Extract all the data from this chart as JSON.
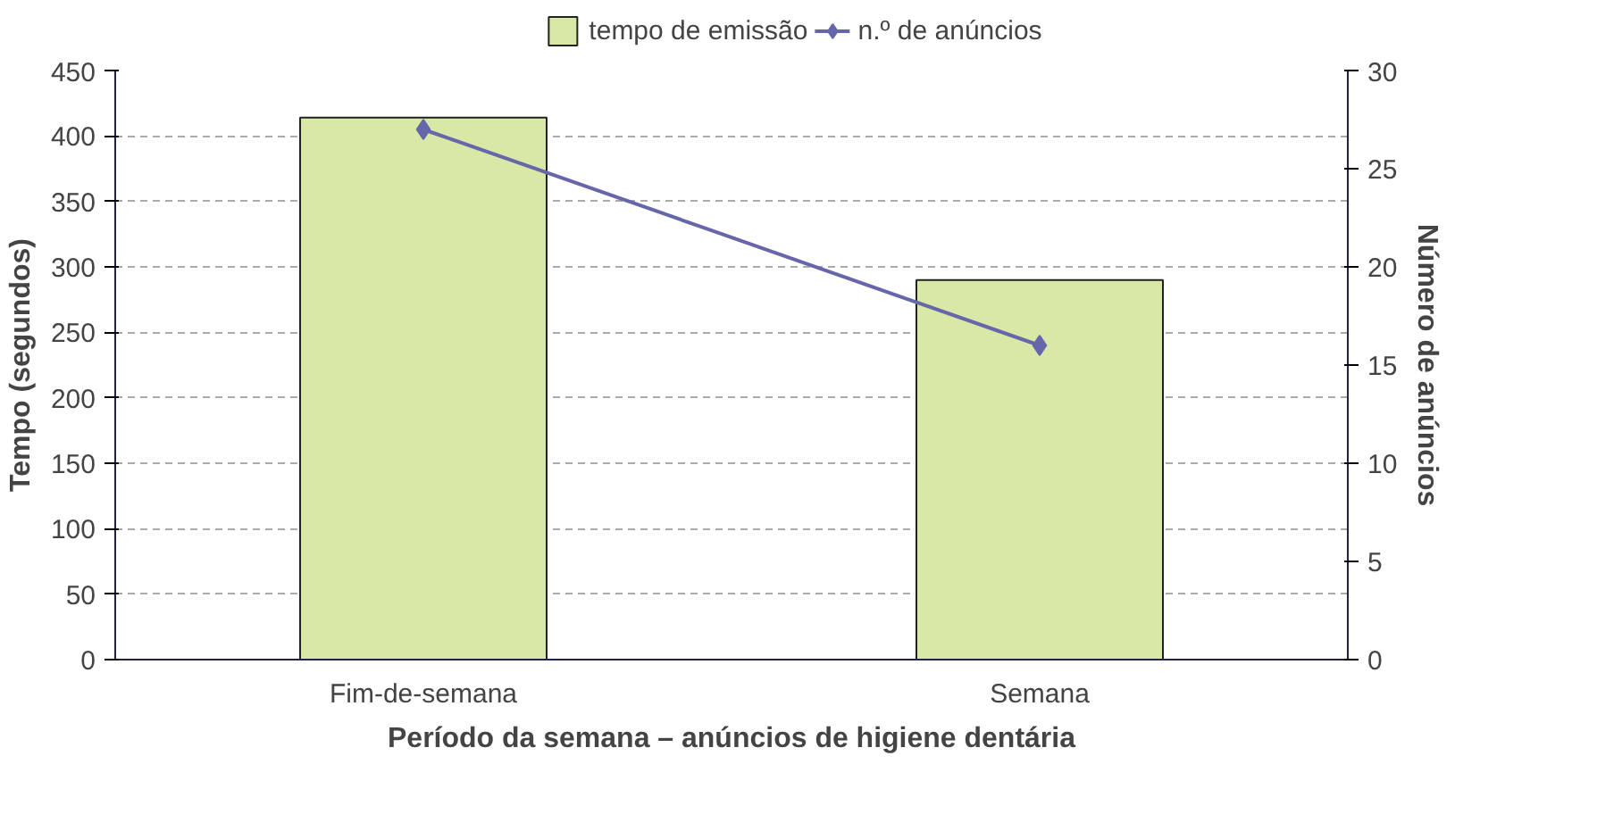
{
  "chart_data": {
    "type": "bar",
    "xlabel": "Período da semana – anúncios de higiene dentária",
    "ylabel": "Tempo (segundos)",
    "y2label": "Número de anúncios",
    "categories": [
      "Fim-de-semana",
      "Semana"
    ],
    "series": [
      {
        "name": "tempo de emissão",
        "color": "#d9e8a6",
        "values": [
          414,
          290
        ]
      },
      {
        "name": "n.º de anúncios",
        "type": "line",
        "axis": "y2",
        "color": "#6666aa",
        "marker": "diamond",
        "values": [
          27,
          16
        ]
      }
    ],
    "ylim": [
      0,
      450
    ],
    "yticks": [
      0,
      50,
      100,
      150,
      200,
      250,
      300,
      350,
      400,
      450
    ],
    "y2lim": [
      0,
      30
    ],
    "y2ticks": [
      0,
      5,
      10,
      15,
      20,
      25,
      30
    ],
    "grid": "y",
    "legend": "top"
  }
}
